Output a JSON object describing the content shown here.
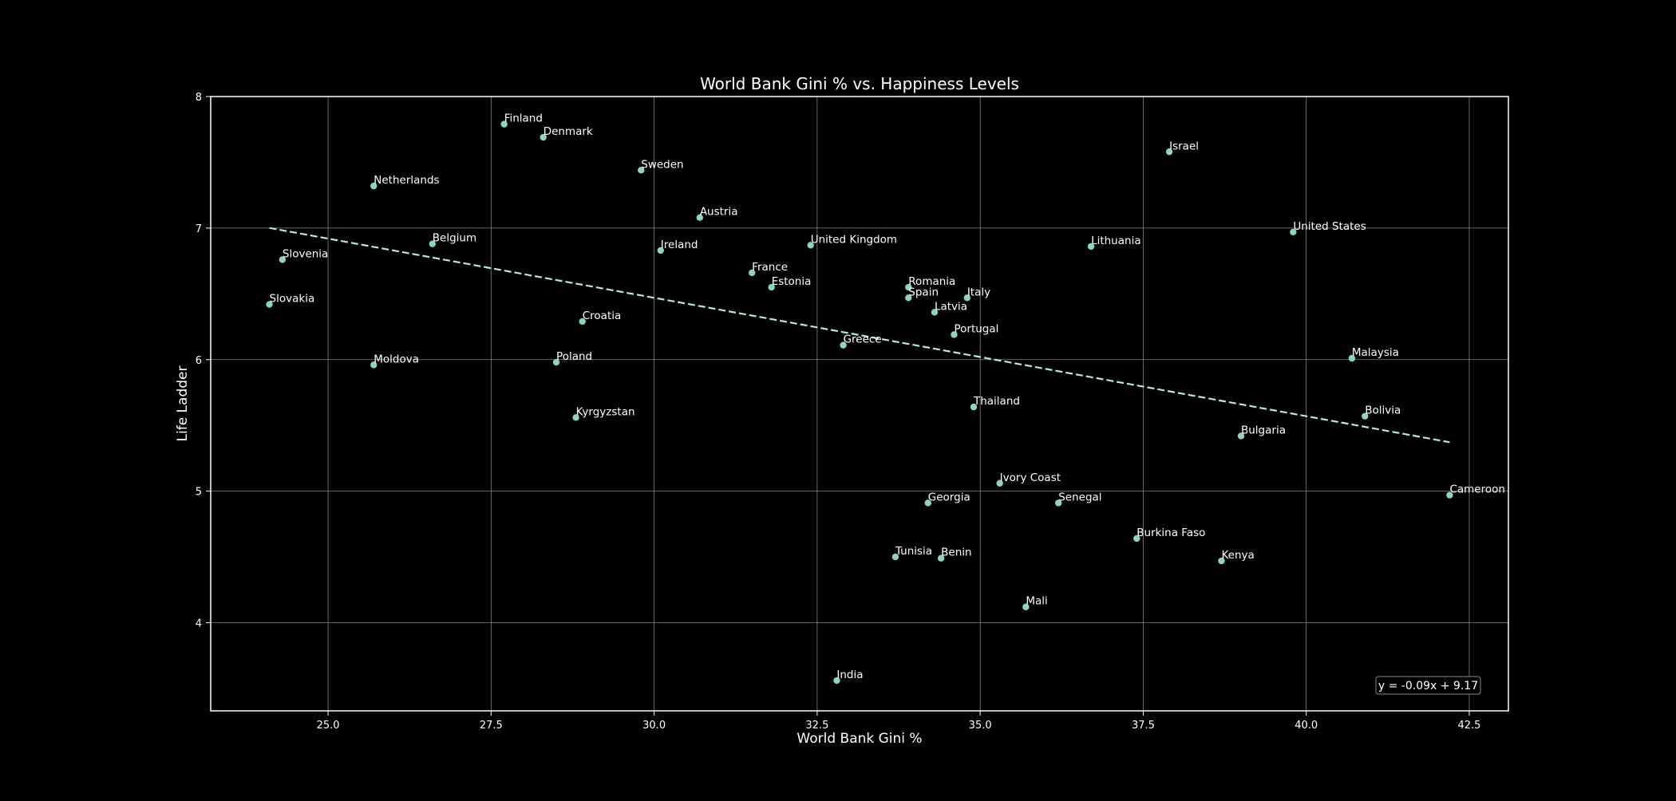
{
  "chart_data": {
    "type": "scatter",
    "title": "World Bank Gini % vs. Happiness Levels",
    "xlabel": "World Bank Gini %",
    "ylabel": "Life Ladder",
    "xlim": [
      23.2,
      43.1
    ],
    "ylim": [
      3.33,
      8.0
    ],
    "grid": true,
    "x_ticks": [
      "25.0",
      "27.5",
      "30.0",
      "32.5",
      "35.0",
      "37.5",
      "40.0",
      "42.5"
    ],
    "y_ticks": [
      "4",
      "5",
      "6",
      "7",
      "8"
    ],
    "trendline": {
      "slope": -0.09,
      "intercept": 9.17,
      "x_range": [
        24.1,
        42.2
      ],
      "equation_label": "y = -0.09x + 9.17"
    },
    "colors": {
      "point": "#8dd3c7",
      "trend": "#b0ebe4",
      "grid": "#b0b0b0",
      "axes": "#ffffff",
      "background": "#000000"
    },
    "points": [
      {
        "label": "Finland",
        "x": 27.7,
        "y": 7.79
      },
      {
        "label": "Denmark",
        "x": 28.3,
        "y": 7.69
      },
      {
        "label": "Sweden",
        "x": 29.8,
        "y": 7.44
      },
      {
        "label": "Netherlands",
        "x": 25.7,
        "y": 7.32
      },
      {
        "label": "Austria",
        "x": 30.7,
        "y": 7.08
      },
      {
        "label": "Israel",
        "x": 37.9,
        "y": 7.58
      },
      {
        "label": "United States",
        "x": 39.8,
        "y": 6.97
      },
      {
        "label": "Belgium",
        "x": 26.6,
        "y": 6.88
      },
      {
        "label": "Slovenia",
        "x": 24.3,
        "y": 6.76
      },
      {
        "label": "Ireland",
        "x": 30.1,
        "y": 6.83
      },
      {
        "label": "United Kingdom",
        "x": 32.4,
        "y": 6.87
      },
      {
        "label": "Lithuania",
        "x": 36.7,
        "y": 6.86
      },
      {
        "label": "France",
        "x": 31.5,
        "y": 6.66
      },
      {
        "label": "Estonia",
        "x": 31.8,
        "y": 6.55
      },
      {
        "label": "Romania",
        "x": 33.9,
        "y": 6.55
      },
      {
        "label": "Spain",
        "x": 33.9,
        "y": 6.47
      },
      {
        "label": "Italy",
        "x": 34.8,
        "y": 6.47
      },
      {
        "label": "Slovakia",
        "x": 24.1,
        "y": 6.42
      },
      {
        "label": "Latvia",
        "x": 34.3,
        "y": 6.36
      },
      {
        "label": "Croatia",
        "x": 28.9,
        "y": 6.29
      },
      {
        "label": "Portugal",
        "x": 34.6,
        "y": 6.19
      },
      {
        "label": "Greece",
        "x": 32.9,
        "y": 6.11
      },
      {
        "label": "Moldova",
        "x": 25.7,
        "y": 5.96
      },
      {
        "label": "Poland",
        "x": 28.5,
        "y": 5.98
      },
      {
        "label": "Malaysia",
        "x": 40.7,
        "y": 6.01
      },
      {
        "label": "Thailand",
        "x": 34.9,
        "y": 5.64
      },
      {
        "label": "Kyrgyzstan",
        "x": 28.8,
        "y": 5.56
      },
      {
        "label": "Bolivia",
        "x": 40.9,
        "y": 5.57
      },
      {
        "label": "Bulgaria",
        "x": 39.0,
        "y": 5.42
      },
      {
        "label": "Ivory Coast",
        "x": 35.3,
        "y": 5.06
      },
      {
        "label": "Georgia",
        "x": 34.2,
        "y": 4.91
      },
      {
        "label": "Senegal",
        "x": 36.2,
        "y": 4.91
      },
      {
        "label": "Cameroon",
        "x": 42.2,
        "y": 4.97
      },
      {
        "label": "Burkina Faso",
        "x": 37.4,
        "y": 4.64
      },
      {
        "label": "Tunisia",
        "x": 33.7,
        "y": 4.5
      },
      {
        "label": "Benin",
        "x": 34.4,
        "y": 4.49
      },
      {
        "label": "Kenya",
        "x": 38.7,
        "y": 4.47
      },
      {
        "label": "Mali",
        "x": 35.7,
        "y": 4.12
      },
      {
        "label": "India",
        "x": 32.8,
        "y": 3.56
      }
    ]
  }
}
